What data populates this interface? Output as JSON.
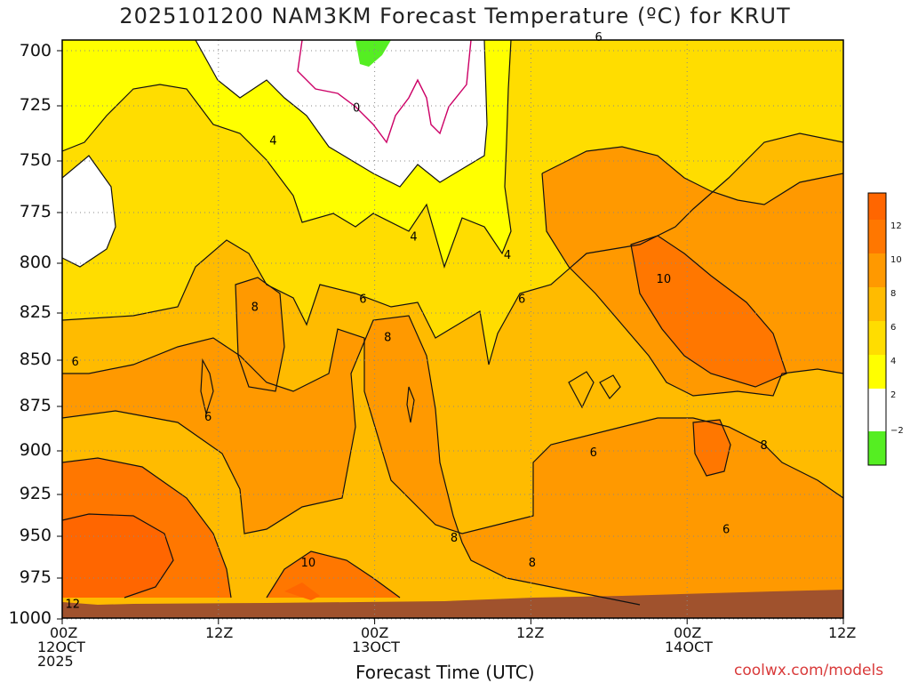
{
  "title": "2025101200 NAM3KM Forecast Temperature (ºC) for KRUT",
  "xlabel": "Forecast Time (UTC)",
  "credit": "coolwx.com/models",
  "colors": {
    "below_minus2": "#55ee22",
    "minus2_to_2": "#ffffff",
    "c2_to_4": "#ffff00",
    "c4_to_6": "#ffdd00",
    "c6_to_8": "#ffbb00",
    "c8_to_10": "#ff9900",
    "c10_to_12": "#ff7700",
    "above_12": "#ff6600",
    "terrain": "#a0522d",
    "zero_contour": "#cc0066"
  },
  "chart_data": {
    "type": "heatmap",
    "title": "2025101200 NAM3KM Forecast Temperature (ºC) for KRUT",
    "xlabel": "Forecast Time (UTC)",
    "ylabel": "",
    "y_ticks": [
      "700",
      "725",
      "750",
      "775",
      "800",
      "825",
      "850",
      "875",
      "900",
      "925",
      "950",
      "975",
      "1000"
    ],
    "x_ticks": [
      {
        "label": "00Z",
        "sub1": "12OCT",
        "sub2": "2025"
      },
      {
        "label": "12Z",
        "sub1": "",
        "sub2": ""
      },
      {
        "label": "00Z",
        "sub1": "13OCT",
        "sub2": ""
      },
      {
        "label": "12Z",
        "sub1": "",
        "sub2": ""
      },
      {
        "label": "00Z",
        "sub1": "14OCT",
        "sub2": ""
      },
      {
        "label": "12Z",
        "sub1": "",
        "sub2": ""
      }
    ],
    "xlim_hours": [
      0,
      60
    ],
    "ylim_hpa": [
      700,
      1000
    ],
    "grid": true,
    "colorbar": {
      "labels": [
        "12",
        "10",
        "8",
        "6",
        "4",
        "2",
        "−2"
      ]
    },
    "contour_labels": [
      {
        "text": "0",
        "hour": 22.6,
        "hpa": 726
      },
      {
        "text": "4",
        "hour": 16.2,
        "hpa": 741
      },
      {
        "text": "4",
        "hour": 27.0,
        "hpa": 787
      },
      {
        "text": "4",
        "hour": 34.2,
        "hpa": 796
      },
      {
        "text": "6",
        "hour": 41.2,
        "hpa": 694
      },
      {
        "text": "6",
        "hour": 23.1,
        "hpa": 818
      },
      {
        "text": "6",
        "hour": 35.3,
        "hpa": 818
      },
      {
        "text": "6",
        "hour": 1.0,
        "hpa": 851
      },
      {
        "text": "6",
        "hour": 11.2,
        "hpa": 881
      },
      {
        "text": "6",
        "hour": 40.8,
        "hpa": 901
      },
      {
        "text": "6",
        "hour": 51.0,
        "hpa": 946
      },
      {
        "text": "8",
        "hour": 14.8,
        "hpa": 822
      },
      {
        "text": "8",
        "hour": 25.0,
        "hpa": 838
      },
      {
        "text": "8",
        "hour": 30.1,
        "hpa": 951
      },
      {
        "text": "8",
        "hour": 36.1,
        "hpa": 966
      },
      {
        "text": "8",
        "hour": 53.9,
        "hpa": 897
      },
      {
        "text": "10",
        "hour": 18.9,
        "hpa": 966
      },
      {
        "text": "10",
        "hour": 46.2,
        "hpa": 808
      },
      {
        "text": "12",
        "hour": 0.8,
        "hpa": 991
      }
    ]
  }
}
